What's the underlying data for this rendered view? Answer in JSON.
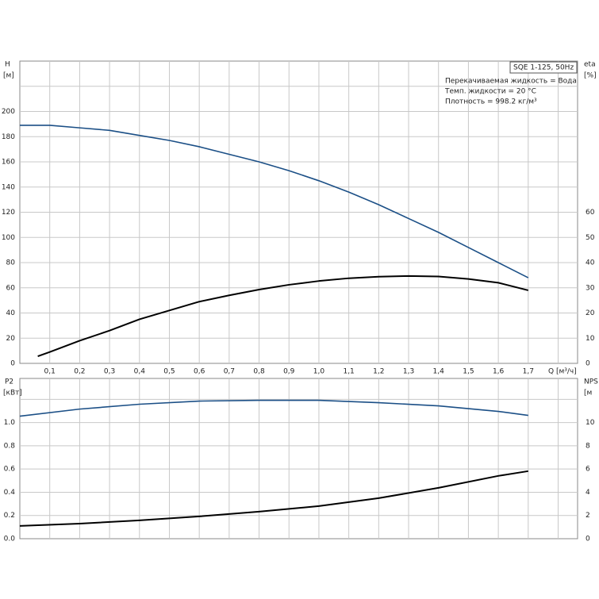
{
  "chart_data": [
    {
      "type": "line",
      "xlim": [
        0,
        1.865
      ],
      "xticks": [
        {
          "value": 0.1,
          "label": "0,1"
        },
        {
          "value": 0.2,
          "label": "0,2"
        },
        {
          "value": 0.3,
          "label": "0,3"
        },
        {
          "value": 0.4,
          "label": "0,4"
        },
        {
          "value": 0.5,
          "label": "0,5"
        },
        {
          "value": 0.6,
          "label": "0,6"
        },
        {
          "value": 0.7,
          "label": "0,7"
        },
        {
          "value": 0.8,
          "label": "0,8"
        },
        {
          "value": 0.9,
          "label": "0,9"
        },
        {
          "value": 1.0,
          "label": "1,0"
        },
        {
          "value": 1.1,
          "label": "1,1"
        },
        {
          "value": 1.2,
          "label": "1,2"
        },
        {
          "value": 1.3,
          "label": "1,3"
        },
        {
          "value": 1.4,
          "label": "1,4"
        },
        {
          "value": 1.5,
          "label": "1,5"
        },
        {
          "value": 1.6,
          "label": "1,6"
        },
        {
          "value": 1.7,
          "label": "1,7"
        }
      ],
      "x_grid": [
        0.1,
        0.2,
        0.3,
        0.4,
        0.5,
        0.6,
        0.7,
        0.8,
        0.9,
        1.0,
        1.1,
        1.2,
        1.3,
        1.4,
        1.5,
        1.6,
        1.7,
        1.8
      ],
      "x_label": "Q [м³/ч]",
      "y_label": "H",
      "y_unit": "[м]",
      "ylim": [
        0,
        240
      ],
      "yticks": [
        0,
        20,
        40,
        60,
        80,
        100,
        120,
        140,
        160,
        180,
        200
      ],
      "y_grid": [
        20,
        40,
        60,
        80,
        100,
        120,
        140,
        160,
        180,
        200,
        220
      ],
      "y2_label": "eta",
      "y2_unit": "[%]",
      "y2lim": [
        0,
        120
      ],
      "y2ticks": [
        0,
        10,
        20,
        30,
        40,
        50,
        60
      ],
      "box_label": "SQE 1-125, 50Hz",
      "notes": [
        "Перекачиваемая жидкость = Вода",
        "Темп. жидкости = 20 °C",
        "Плотность = 998.2 кг/м³"
      ],
      "series": [
        {
          "color": "#1b4f86",
          "axis": "y",
          "x": [
            0,
            0.1,
            0.2,
            0.3,
            0.4,
            0.5,
            0.6,
            0.7,
            0.8,
            0.9,
            1.0,
            1.1,
            1.2,
            1.3,
            1.4,
            1.5,
            1.6,
            1.7
          ],
          "values": [
            189,
            189,
            187,
            185,
            181,
            177,
            172,
            166,
            160,
            153,
            145,
            136,
            126,
            115,
            104,
            92,
            80,
            68
          ]
        },
        {
          "color": "#000000",
          "axis": "y2",
          "x": [
            0.06,
            0.1,
            0.2,
            0.3,
            0.4,
            0.5,
            0.6,
            0.7,
            0.8,
            0.9,
            1.0,
            1.1,
            1.2,
            1.3,
            1.4,
            1.5,
            1.6,
            1.7
          ],
          "values": [
            2.8,
            4.5,
            9,
            13,
            17.5,
            21,
            24.5,
            27,
            29.3,
            31.2,
            32.7,
            33.8,
            34.4,
            34.7,
            34.5,
            33.5,
            32,
            29
          ]
        }
      ]
    },
    {
      "type": "line",
      "xlim": [
        0,
        1.865
      ],
      "x_grid": [
        0.1,
        0.2,
        0.3,
        0.4,
        0.5,
        0.6,
        0.7,
        0.8,
        0.9,
        1.0,
        1.1,
        1.2,
        1.3,
        1.4,
        1.5,
        1.6,
        1.7,
        1.8
      ],
      "y_label": "P2",
      "y_unit": "[кВт]",
      "ylim": [
        0,
        1.38
      ],
      "yticks": [
        {
          "value": 0,
          "label": "0.0"
        },
        0.2,
        0.4,
        0.6,
        0.8,
        {
          "value": 1.0,
          "label": "1.0"
        }
      ],
      "y_grid": [
        0.2,
        0.4,
        0.6,
        0.8,
        1.0,
        1.2
      ],
      "y2_label": "NPS",
      "y2_unit": "[м",
      "y2lim": [
        0,
        13.8
      ],
      "y2ticks": [
        0,
        2,
        4,
        6,
        8,
        10
      ],
      "series": [
        {
          "color": "#1b4f86",
          "axis": "y",
          "x": [
            0,
            0.2,
            0.4,
            0.6,
            0.8,
            1.0,
            1.2,
            1.4,
            1.6,
            1.7
          ],
          "values": [
            1.055,
            1.116,
            1.158,
            1.185,
            1.192,
            1.192,
            1.171,
            1.144,
            1.096,
            1.062
          ]
        },
        {
          "color": "#000000",
          "axis": "y2",
          "x": [
            0,
            0.2,
            0.4,
            0.6,
            0.8,
            1.0,
            1.2,
            1.4,
            1.6,
            1.7
          ],
          "values": [
            1.1,
            1.3,
            1.58,
            1.92,
            2.33,
            2.81,
            3.49,
            4.38,
            5.41,
            5.82
          ]
        }
      ]
    }
  ]
}
